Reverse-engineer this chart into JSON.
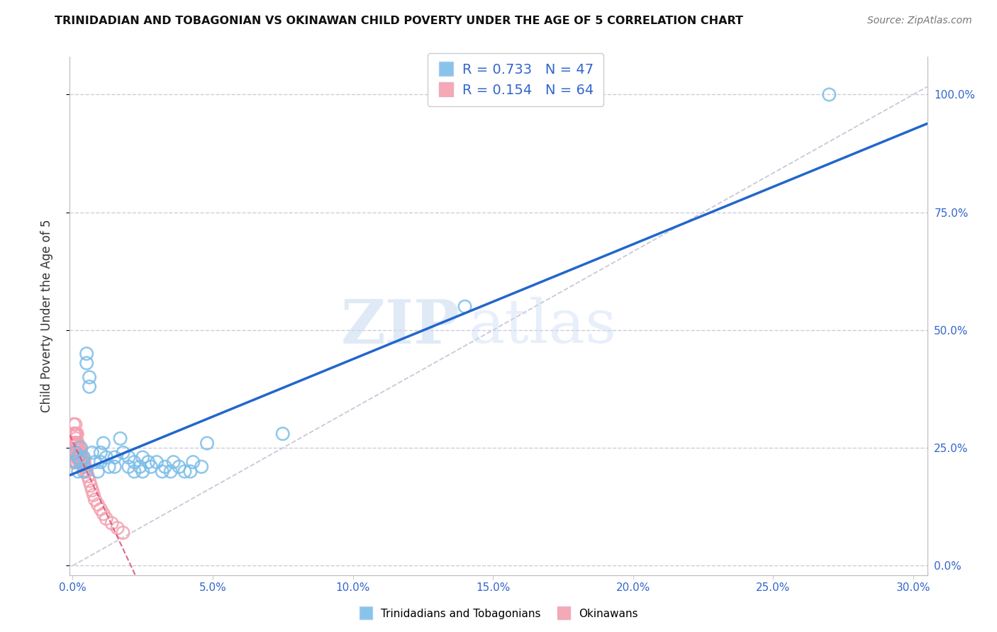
{
  "title": "TRINIDADIAN AND TOBAGONIAN VS OKINAWAN CHILD POVERTY UNDER THE AGE OF 5 CORRELATION CHART",
  "source": "Source: ZipAtlas.com",
  "ylabel": "Child Poverty Under the Age of 5",
  "xlim": [
    -0.001,
    0.305
  ],
  "ylim": [
    -0.02,
    1.08
  ],
  "xticks": [
    0.0,
    0.05,
    0.1,
    0.15,
    0.2,
    0.25,
    0.3
  ],
  "yticks": [
    0.0,
    0.25,
    0.5,
    0.75,
    1.0
  ],
  "blue_R": 0.733,
  "blue_N": 47,
  "pink_R": 0.154,
  "pink_N": 64,
  "blue_color": "#7BBDE8",
  "pink_color": "#F4A0B0",
  "blue_edge_color": "#5599CC",
  "pink_edge_color": "#EE7799",
  "blue_line_color": "#2266CC",
  "pink_line_color": "#DD5577",
  "diag_color": "#C8C8D8",
  "grid_color": "#CCCCDD",
  "legend1_label": "Trinidadians and Tobagonians",
  "legend2_label": "Okinawans",
  "title_color": "#111111",
  "source_color": "#777777",
  "axis_tick_color": "#3366CC",
  "ylabel_color": "#333333",
  "blue_scatter_x": [
    0.001,
    0.001,
    0.002,
    0.002,
    0.003,
    0.003,
    0.004,
    0.004,
    0.005,
    0.005,
    0.006,
    0.006,
    0.007,
    0.008,
    0.009,
    0.01,
    0.01,
    0.011,
    0.012,
    0.013,
    0.015,
    0.015,
    0.017,
    0.018,
    0.02,
    0.02,
    0.022,
    0.022,
    0.024,
    0.025,
    0.025,
    0.027,
    0.028,
    0.03,
    0.032,
    0.033,
    0.035,
    0.036,
    0.038,
    0.04,
    0.042,
    0.043,
    0.046,
    0.048,
    0.075,
    0.14,
    0.27
  ],
  "blue_scatter_y": [
    0.22,
    0.24,
    0.2,
    0.23,
    0.25,
    0.22,
    0.2,
    0.23,
    0.43,
    0.45,
    0.4,
    0.38,
    0.24,
    0.22,
    0.2,
    0.24,
    0.22,
    0.26,
    0.23,
    0.21,
    0.23,
    0.21,
    0.27,
    0.24,
    0.21,
    0.23,
    0.2,
    0.22,
    0.21,
    0.23,
    0.2,
    0.22,
    0.21,
    0.22,
    0.2,
    0.21,
    0.2,
    0.22,
    0.21,
    0.2,
    0.2,
    0.22,
    0.21,
    0.26,
    0.28,
    0.55,
    1.0
  ],
  "pink_scatter_x": [
    0.0002,
    0.0003,
    0.0004,
    0.0004,
    0.0005,
    0.0005,
    0.0006,
    0.0006,
    0.0007,
    0.0007,
    0.0008,
    0.0008,
    0.0009,
    0.0009,
    0.001,
    0.001,
    0.001,
    0.0011,
    0.0011,
    0.0012,
    0.0012,
    0.0013,
    0.0013,
    0.0014,
    0.0014,
    0.0015,
    0.0015,
    0.0016,
    0.0016,
    0.0017,
    0.0018,
    0.0019,
    0.002,
    0.0021,
    0.0022,
    0.0023,
    0.0024,
    0.0025,
    0.0026,
    0.0027,
    0.0028,
    0.003,
    0.0032,
    0.0034,
    0.0036,
    0.0038,
    0.004,
    0.0042,
    0.0045,
    0.0048,
    0.005,
    0.0055,
    0.006,
    0.0065,
    0.007,
    0.0075,
    0.008,
    0.009,
    0.01,
    0.011,
    0.012,
    0.014,
    0.016,
    0.018
  ],
  "pink_scatter_y": [
    0.24,
    0.22,
    0.3,
    0.26,
    0.28,
    0.24,
    0.26,
    0.22,
    0.28,
    0.24,
    0.26,
    0.22,
    0.28,
    0.24,
    0.3,
    0.26,
    0.22,
    0.28,
    0.24,
    0.26,
    0.22,
    0.27,
    0.23,
    0.28,
    0.24,
    0.26,
    0.22,
    0.28,
    0.24,
    0.25,
    0.23,
    0.26,
    0.24,
    0.25,
    0.23,
    0.24,
    0.22,
    0.25,
    0.23,
    0.24,
    0.22,
    0.24,
    0.23,
    0.22,
    0.23,
    0.22,
    0.21,
    0.22,
    0.21,
    0.2,
    0.2,
    0.19,
    0.18,
    0.17,
    0.16,
    0.15,
    0.14,
    0.13,
    0.12,
    0.11,
    0.1,
    0.09,
    0.08,
    0.07
  ]
}
